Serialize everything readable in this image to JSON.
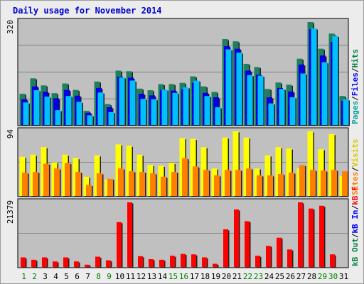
{
  "chart_data": {
    "type": "bar",
    "title": "Daily usage for November 2014",
    "colors": {
      "title": "#0000cc",
      "pages": "#00a0a0",
      "files": "#0000ff",
      "hits": "#008040",
      "visits": "#d6c900",
      "sites": "#ff8000",
      "kbout": "#008040",
      "kbin": "#0000ff",
      "kbf": "#ff0000",
      "weekend": "#008000",
      "weekday": "#000000"
    },
    "days": [
      "1",
      "2",
      "3",
      "4",
      "5",
      "6",
      "7",
      "8",
      "9",
      "10",
      "11",
      "12",
      "13",
      "14",
      "15",
      "16",
      "17",
      "18",
      "19",
      "20",
      "21",
      "22",
      "23",
      "24",
      "25",
      "26",
      "27",
      "28",
      "29",
      "30",
      "31"
    ],
    "weekend_days": [
      "1",
      "2",
      "8",
      "9",
      "15",
      "16",
      "22",
      "23",
      "29",
      "30"
    ],
    "panels": [
      {
        "id": "hits",
        "ymax_label": "320",
        "ymax": 320,
        "axis_labels": [
          {
            "text": "Hits",
            "color": "#008040"
          },
          {
            "text": "/",
            "color": "#000000"
          },
          {
            "text": "Files",
            "color": "#0000ff"
          },
          {
            "text": "/",
            "color": "#000000"
          },
          {
            "text": "Pages",
            "color": "#00a0a0"
          }
        ],
        "series": [
          {
            "name": "Hits",
            "color": "#1f8060",
            "values": [
              97,
              145,
              123,
              99,
              129,
              109,
              44,
              135,
              65,
              169,
              167,
              113,
              108,
              127,
              127,
              131,
              151,
              120,
              103,
              267,
              260,
              190,
              180,
              112,
              132,
              125,
              206,
              320,
              237,
              284,
              90
            ]
          },
          {
            "name": "Files",
            "color": "#0000e0",
            "values": [
              80,
              120,
              103,
              83,
              109,
              91,
              38,
              115,
              55,
              150,
              147,
              97,
              92,
              109,
              107,
              111,
              131,
              100,
              86,
              245,
              237,
              169,
              156,
              86,
              115,
              104,
              188,
              298,
              216,
              258,
              75
            ]
          },
          {
            "name": "Pages",
            "color": "#00c0ff",
            "values": [
              70,
              108,
              88,
              46,
              90,
              72,
              30,
              101,
              40,
              148,
              138,
              81,
              80,
              110,
              100,
              117,
              138,
              90,
              55,
              235,
              225,
              155,
              153,
              67,
              112,
              86,
              160,
              300,
              195,
              277,
              80
            ]
          }
        ]
      },
      {
        "id": "visits",
        "ymax_label": "94",
        "ymax": 94,
        "axis_labels": [
          {
            "text": "Visits",
            "color": "#d6c900"
          },
          {
            "text": "/",
            "color": "#000000"
          },
          {
            "text": "Sites",
            "color": "#ff8000"
          }
        ],
        "series": [
          {
            "name": "Visits",
            "color": "#ffff00",
            "values": [
              57,
              60,
              71,
              49,
              60,
              55,
              28,
              59,
              24,
              75,
              73,
              60,
              45,
              44,
              48,
              84,
              83,
              71,
              40,
              85,
              94,
              85,
              40,
              59,
              71,
              69,
              40,
              94,
              68,
              90,
              29
            ]
          },
          {
            "name": "Sites",
            "color": "#ff8000",
            "values": [
              34,
              35,
              47,
              40,
              48,
              35,
              16,
              33,
              25,
              40,
              36,
              35,
              33,
              28,
              35,
              55,
              43,
              38,
              30,
              38,
              38,
              40,
              30,
              30,
              32,
              34,
              45,
              38,
              37,
              38,
              36
            ]
          }
        ]
      },
      {
        "id": "kbytes",
        "ymax_label": "21379",
        "ymax": 21379,
        "axis_labels": [
          {
            "text": "kB F",
            "color": "#ff0000"
          },
          {
            "text": "/",
            "color": "#000000"
          },
          {
            "text": "kB In",
            "color": "#0000ff"
          },
          {
            "text": "/",
            "color": "#000000"
          },
          {
            "text": "kB Out",
            "color": "#008040"
          }
        ],
        "series": [
          {
            "name": "kB F",
            "color": "#ff0000",
            "values": [
              3180,
              2390,
              3180,
              1820,
              3180,
              1820,
              760,
              3410,
              2190,
              14840,
              21379,
              3560,
              2580,
              2390,
              3710,
              4320,
              4170,
              3180,
              1060,
              12460,
              19020,
              15140,
              3710,
              6970,
              9700,
              5800,
              21379,
              19330,
              20260,
              4170,
              0
            ]
          }
        ]
      }
    ]
  }
}
